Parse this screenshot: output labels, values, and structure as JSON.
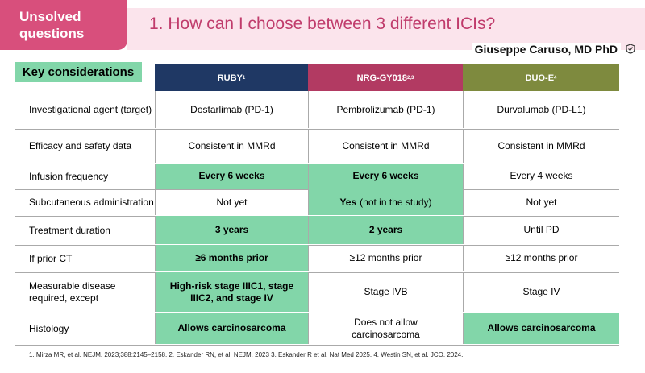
{
  "header": {
    "badge": "Unsolved questions",
    "title": "1. How can I choose between 3 different ICIs?",
    "author": "Giuseppe Caruso, MD PhD"
  },
  "table": {
    "corner": "Key considerations",
    "columns": [
      {
        "name": "RUBY",
        "sup": "1",
        "color": "#1f3864"
      },
      {
        "name": "NRG-GY018",
        "sup": "2,3",
        "color": "#b23a62"
      },
      {
        "name": "DUO-E",
        "sup": "4",
        "color": "#7e8a3e"
      }
    ],
    "highlight_color": "#82d6a9",
    "rows": [
      {
        "label": "Investigational agent (target)",
        "cells": [
          {
            "text": "Dostarlimab (PD-1)"
          },
          {
            "text": "Pembrolizumab (PD-1)"
          },
          {
            "text": "Durvalumab (PD-L1)"
          }
        ]
      },
      {
        "label": "Efficacy and safety data",
        "cells": [
          {
            "text": "Consistent in MMRd"
          },
          {
            "text": "Consistent in MMRd"
          },
          {
            "text": "Consistent in MMRd"
          }
        ]
      },
      {
        "label": "Infusion frequency",
        "cells": [
          {
            "text": "Every 6 weeks",
            "highlight": true
          },
          {
            "text": "Every 6 weeks",
            "highlight": true
          },
          {
            "text": "Every 4 weeks"
          }
        ]
      },
      {
        "label": "Subcutaneous administration",
        "cells": [
          {
            "text": "Not yet"
          },
          {
            "parts": [
              {
                "text": "Yes",
                "bold": true
              },
              {
                "text": "(not in the study)"
              }
            ],
            "highlight": true
          },
          {
            "text": "Not yet"
          }
        ]
      },
      {
        "label": "Treatment duration",
        "cells": [
          {
            "text": "3 years",
            "highlight": true
          },
          {
            "text": "2 years",
            "highlight": true
          },
          {
            "text": "Until PD"
          }
        ]
      },
      {
        "label": "If prior CT",
        "cells": [
          {
            "text": "≥6 months prior",
            "highlight": true
          },
          {
            "text": "≥12 months prior"
          },
          {
            "text": "≥12 months prior"
          }
        ]
      },
      {
        "label": "Measurable disease required, except",
        "cells": [
          {
            "text": "High-risk stage IIIC1, stage IIIC2, and stage IV",
            "highlight": true
          },
          {
            "text": "Stage IVB"
          },
          {
            "text": "Stage IV"
          }
        ]
      },
      {
        "label": "Histology",
        "cells": [
          {
            "text": "Allows carcinosarcoma",
            "highlight": true
          },
          {
            "text": "Does not allow carcinosarcoma"
          },
          {
            "text": "Allows carcinosarcoma",
            "highlight": true
          }
        ]
      }
    ]
  },
  "footnote": "1. Mirza MR, et al. NEJM. 2023;388:2145–2158. 2. Eskander RN, et al. NEJM. 2023 3. Eskander R et al. Nat Med 2025. 4. Westin SN, et al. JCO. 2024."
}
